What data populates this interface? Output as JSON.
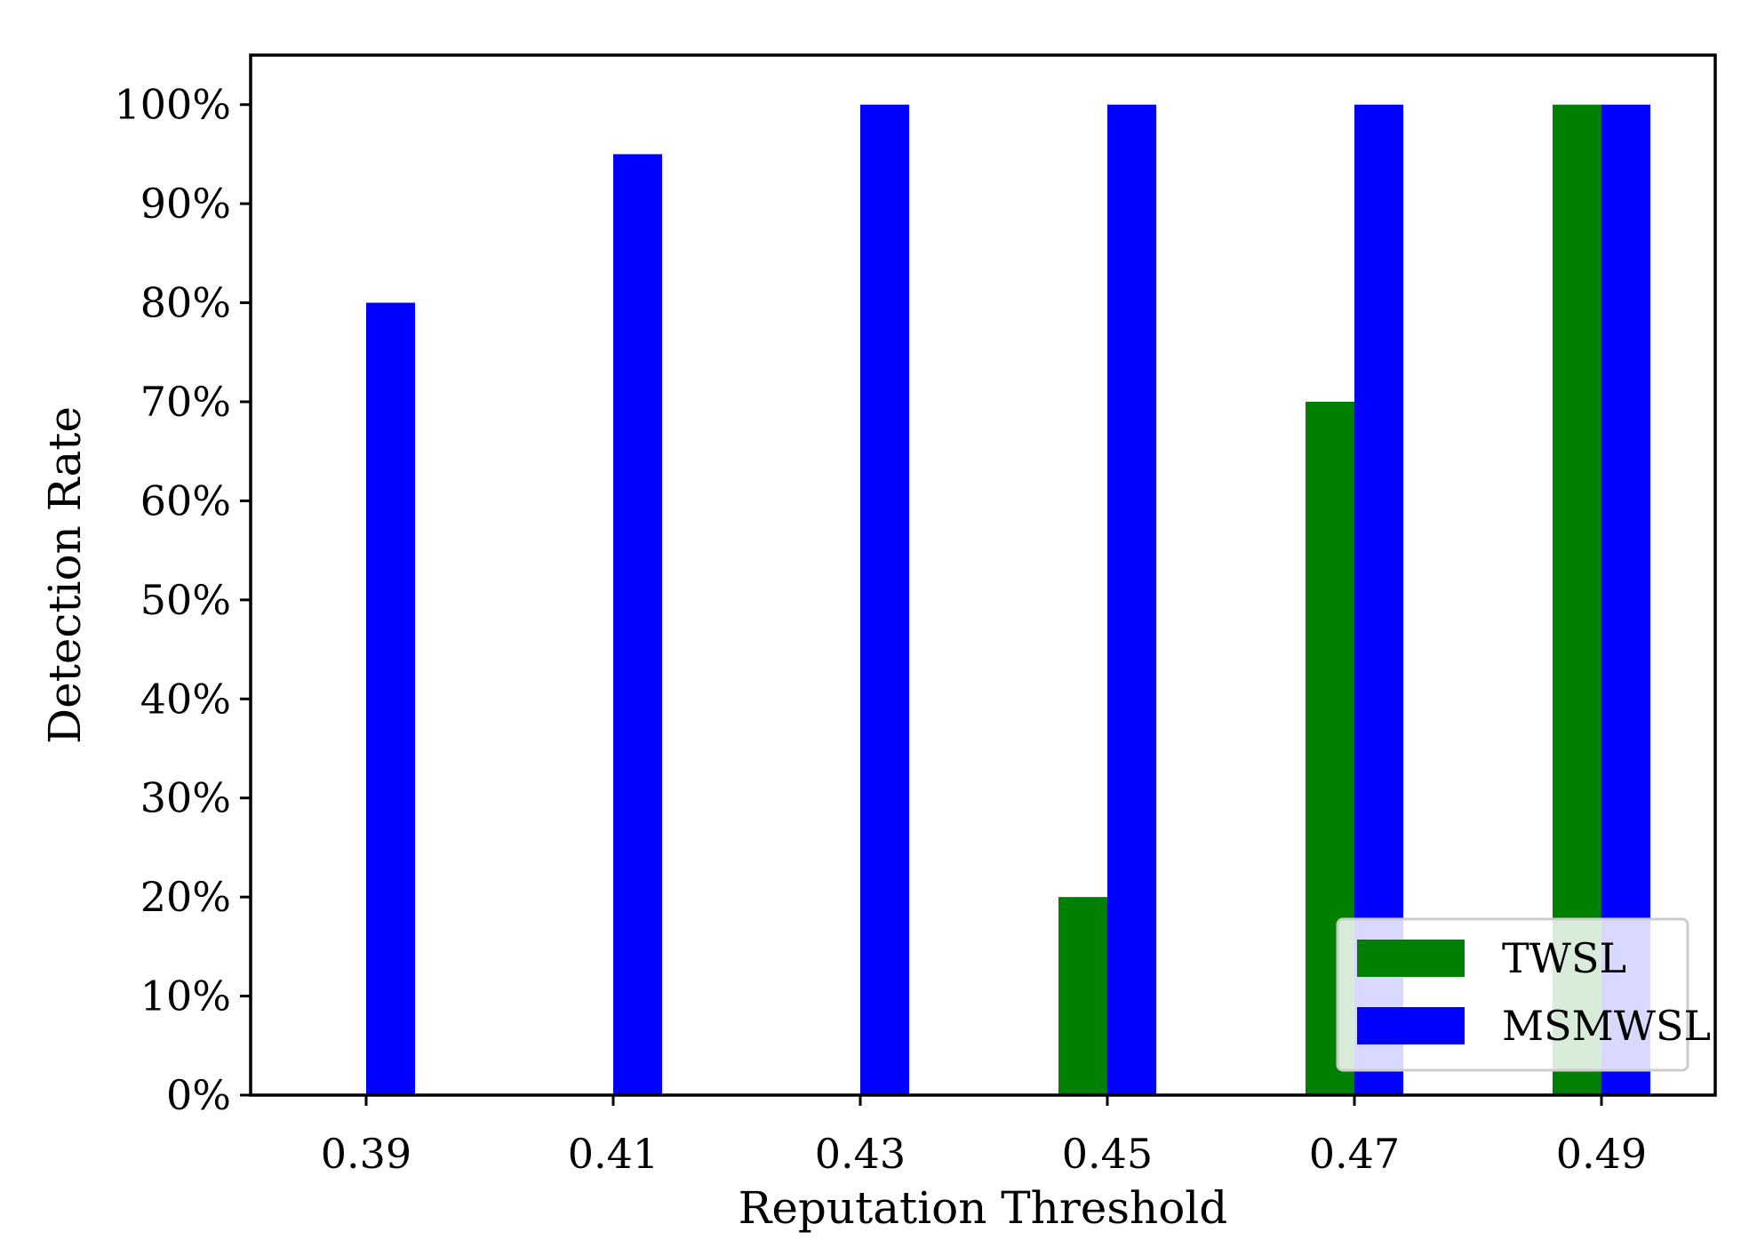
{
  "chart_data": {
    "type": "bar",
    "title": "",
    "xlabel": "Reputation Threshold",
    "ylabel": "Detection Rate",
    "categories": [
      "0.39",
      "0.41",
      "0.43",
      "0.45",
      "0.47",
      "0.49"
    ],
    "series": [
      {
        "name": "TWSL",
        "values": [
          0,
          0,
          0,
          20,
          70,
          100
        ],
        "color": "#008000"
      },
      {
        "name": "MSMWSL",
        "values": [
          80,
          95,
          100,
          100,
          100,
          100
        ],
        "color": "#0000ff"
      }
    ],
    "ylim": [
      0,
      105
    ],
    "yticks": [
      0,
      10,
      20,
      30,
      40,
      50,
      60,
      70,
      80,
      90,
      100
    ],
    "ytick_labels": [
      "0%",
      "10%",
      "20%",
      "30%",
      "40%",
      "50%",
      "60%",
      "70%",
      "80%",
      "90%",
      "100%"
    ],
    "grid": false,
    "legend_position": "lower-right"
  }
}
